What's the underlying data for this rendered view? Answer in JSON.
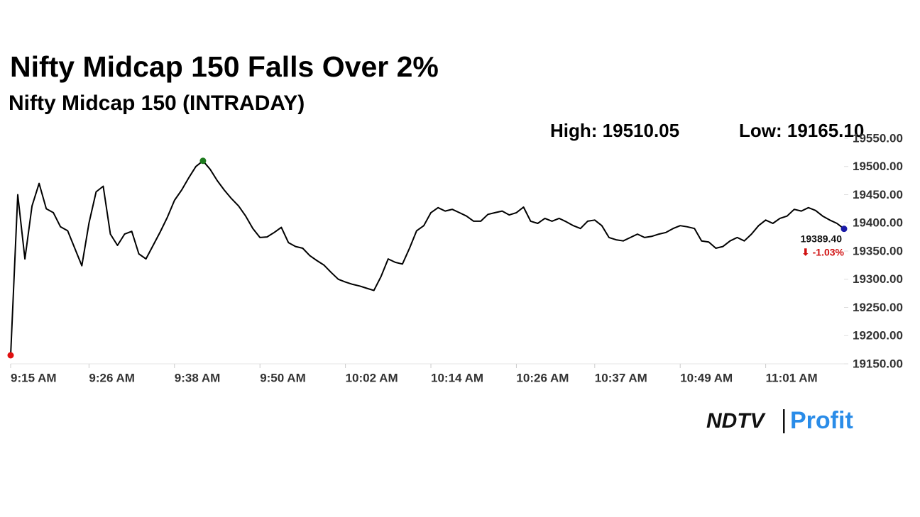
{
  "chart_data": {
    "type": "line",
    "title": "Nifty Midcap 150 Falls Over 2%",
    "subtitle": "Nifty Midcap 150 (INTRADAY)",
    "high_label": "High: 19510.05",
    "low_label": "Low: 19165.10",
    "last_label": "19389.40",
    "change_label": "⬇ -1.03%",
    "brand": [
      "NDTV",
      "Profit"
    ],
    "color": "#000000",
    "high_color": "#1e7b1e",
    "low_color": "#e01010",
    "last_color": "#1a1aa8",
    "change_color": "#d01010",
    "x": [
      "9:15 AM",
      "9:16 AM",
      "9:17 AM",
      "9:18 AM",
      "9:19 AM",
      "9:20 AM",
      "9:21 AM",
      "9:22 AM",
      "9:23 AM",
      "9:24 AM",
      "9:25 AM",
      "9:26 AM",
      "9:27 AM",
      "9:28 AM",
      "9:29 AM",
      "9:30 AM",
      "9:31 AM",
      "9:32 AM",
      "9:33 AM",
      "9:34 AM",
      "9:35 AM",
      "9:36 AM",
      "9:37 AM",
      "9:38 AM",
      "9:39 AM",
      "9:40 AM",
      "9:41 AM",
      "9:42 AM",
      "9:43 AM",
      "9:44 AM",
      "9:45 AM",
      "9:46 AM",
      "9:47 AM",
      "9:48 AM",
      "9:49 AM",
      "9:50 AM",
      "9:51 AM",
      "9:52 AM",
      "9:53 AM",
      "9:54 AM",
      "9:55 AM",
      "9:56 AM",
      "9:57 AM",
      "9:58 AM",
      "9:59 AM",
      "10:00 AM",
      "10:01 AM",
      "10:02 AM",
      "10:03 AM",
      "10:04 AM",
      "10:05 AM",
      "10:06 AM",
      "10:07 AM",
      "10:08 AM",
      "10:09 AM",
      "10:10 AM",
      "10:11 AM",
      "10:12 AM",
      "10:13 AM",
      "10:14 AM",
      "10:15 AM",
      "10:16 AM",
      "10:17 AM",
      "10:18 AM",
      "10:19 AM",
      "10:20 AM",
      "10:21 AM",
      "10:22 AM",
      "10:23 AM",
      "10:24 AM",
      "10:25 AM",
      "10:26 AM",
      "10:27 AM",
      "10:28 AM",
      "10:29 AM",
      "10:30 AM",
      "10:31 AM",
      "10:32 AM",
      "10:33 AM",
      "10:34 AM",
      "10:35 AM",
      "10:36 AM",
      "10:37 AM",
      "10:38 AM",
      "10:39 AM",
      "10:40 AM",
      "10:41 AM",
      "10:42 AM",
      "10:43 AM",
      "10:44 AM",
      "10:45 AM",
      "10:46 AM",
      "10:47 AM",
      "10:48 AM",
      "10:49 AM",
      "10:50 AM",
      "10:51 AM",
      "10:52 AM",
      "10:53 AM",
      "10:54 AM",
      "10:55 AM",
      "10:56 AM",
      "10:57 AM",
      "10:58 AM",
      "10:59 AM",
      "11:00 AM",
      "11:01 AM",
      "11:02 AM",
      "11:03 AM",
      "11:04 AM",
      "11:05 AM",
      "11:06 AM",
      "11:07 AM",
      "11:08 AM",
      "11:09 AM",
      "11:10 AM",
      "11:11 AM",
      "11:12 AM"
    ],
    "values": [
      19165.1,
      19450,
      19336,
      19430,
      19470,
      19425,
      19418,
      19393,
      19386,
      19355,
      19324,
      19400,
      19455,
      19465,
      19380,
      19360,
      19380,
      19385,
      19345,
      19336,
      19360,
      19384,
      19410,
      19440,
      19458,
      19480,
      19500,
      19510.05,
      19495,
      19475,
      19458,
      19443,
      19430,
      19412,
      19390,
      19374,
      19375,
      19383,
      19392,
      19365,
      19358,
      19355,
      19342,
      19333,
      19325,
      19312,
      19300,
      19295,
      19291,
      19288,
      19284,
      19280,
      19305,
      19336,
      19330,
      19327,
      19355,
      19386,
      19395,
      19418,
      19427,
      19421,
      19424,
      19418,
      19412,
      19403,
      19403,
      19415,
      19418,
      19421,
      19414,
      19418,
      19428,
      19403,
      19399,
      19408,
      19403,
      19408,
      19402,
      19395,
      19390,
      19403,
      19405,
      19395,
      19374,
      19370,
      19368,
      19374,
      19380,
      19374,
      19376,
      19380,
      19383,
      19390,
      19395,
      19393,
      19390,
      19368,
      19366,
      19355,
      19358,
      19368,
      19374,
      19368,
      19380,
      19395,
      19405,
      19399,
      19408,
      19412,
      19424,
      19421,
      19427,
      19422,
      19412,
      19405,
      19399,
      19389.4
    ],
    "xticks": [
      "9:15 AM",
      "9:26 AM",
      "9:38 AM",
      "9:50 AM",
      "10:02 AM",
      "10:14 AM",
      "10:26 AM",
      "10:37 AM",
      "10:49 AM",
      "11:01 AM"
    ],
    "ylim": [
      19150,
      19550
    ],
    "yticks": [
      {
        "value": 19150,
        "label": "19150.00"
      },
      {
        "value": 19200,
        "label": "19200.00"
      },
      {
        "value": 19250,
        "label": "19250.00"
      },
      {
        "value": 19300,
        "label": "19300.00"
      },
      {
        "value": 19350,
        "label": "19350.00"
      },
      {
        "value": 19400,
        "label": "19400.00"
      },
      {
        "value": 19450,
        "label": "19450.00"
      },
      {
        "value": 19500,
        "label": "19500.00"
      },
      {
        "value": 19550,
        "label": "19550.00"
      }
    ]
  }
}
